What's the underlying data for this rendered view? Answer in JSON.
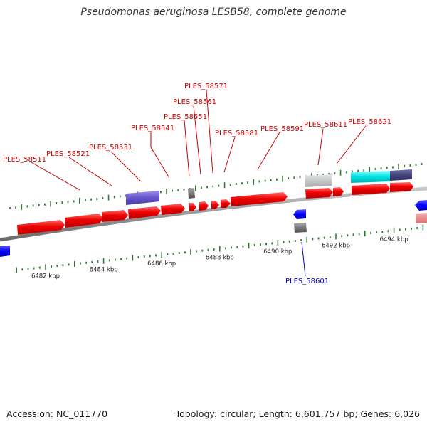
{
  "header": {
    "title": "Pseudomonas aeruginosa LESB58, complete genome"
  },
  "footer": {
    "accession": "Accession: NC_011770",
    "summary": "Topology: circular; Length: 6,601,757 bp; Genes: 6,026"
  },
  "colors": {
    "forward_cds": "#ee0000",
    "reverse_cds": "#0000ff",
    "reverse_light": "#e88888",
    "slate_feature": "#6655cc",
    "dark_slate_feature": "#44447a",
    "cyan_feature": "#00dddd",
    "gray_feature": "#777777",
    "light_gray_feature": "#c4c4c4",
    "backbone": "#999999",
    "tick": "#2e7d32",
    "forward_label": "#d40000",
    "reverse_label": "#0000cc"
  },
  "scale": {
    "unit": "kbp",
    "labels": [
      {
        "kbp": 6482,
        "text": "6482 kbp"
      },
      {
        "kbp": 6484,
        "text": "6484 kbp"
      },
      {
        "kbp": 6486,
        "text": "6486 kbp"
      },
      {
        "kbp": 6488,
        "text": "6488 kbp"
      },
      {
        "kbp": 6490,
        "text": "6490 kbp"
      },
      {
        "kbp": 6492,
        "text": "6492 kbp"
      },
      {
        "kbp": 6494,
        "text": "6494 kbp"
      }
    ]
  },
  "gene_labels": [
    {
      "id": "PLES_58511",
      "strand": "forward"
    },
    {
      "id": "PLES_58521",
      "strand": "forward"
    },
    {
      "id": "PLES_58531",
      "strand": "forward"
    },
    {
      "id": "PLES_58541",
      "strand": "forward"
    },
    {
      "id": "PLES_58551",
      "strand": "forward"
    },
    {
      "id": "PLES_58561",
      "strand": "forward"
    },
    {
      "id": "PLES_58571",
      "strand": "forward"
    },
    {
      "id": "PLES_58581",
      "strand": "forward"
    },
    {
      "id": "PLES_58591",
      "strand": "forward"
    },
    {
      "id": "PLES_58611",
      "strand": "forward"
    },
    {
      "id": "PLES_58621",
      "strand": "forward"
    },
    {
      "id": "PLES_58601",
      "strand": "reverse"
    }
  ]
}
